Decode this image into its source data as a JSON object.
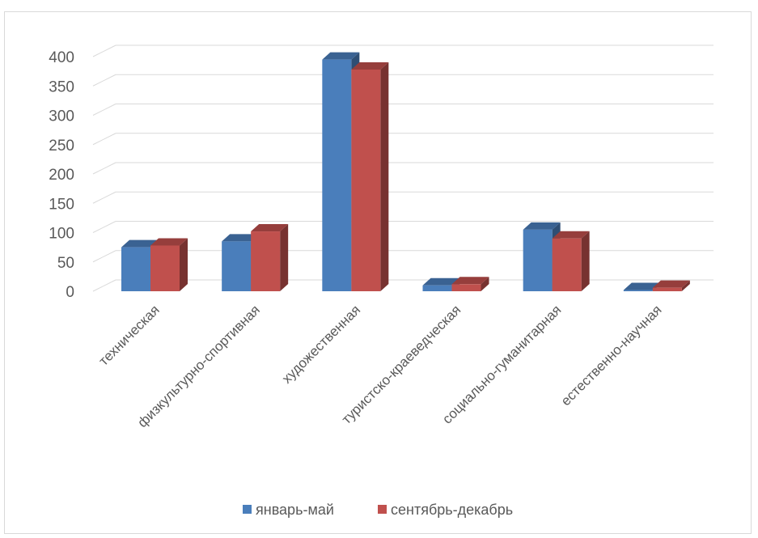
{
  "chart_data": {
    "type": "bar",
    "style": "3d-clustered-column",
    "title": "",
    "xlabel": "",
    "ylabel": "",
    "ylim": [
      0,
      400
    ],
    "yticks": [
      0,
      50,
      100,
      150,
      200,
      250,
      300,
      350,
      400
    ],
    "grid": true,
    "legend_position": "bottom",
    "categories": [
      "техническая",
      "физкультурно-спортивная",
      "художественная",
      "туристско-краеведческая",
      "социально-гуманитарная",
      "естественно-научная"
    ],
    "series": [
      {
        "name": "январь-май",
        "color": "#4a7ebb",
        "values": [
          75,
          85,
          395,
          10,
          105,
          2
        ]
      },
      {
        "name": "сентябрь-декабрь",
        "color": "#c0504d",
        "values": [
          78,
          102,
          378,
          12,
          90,
          6
        ]
      }
    ]
  }
}
